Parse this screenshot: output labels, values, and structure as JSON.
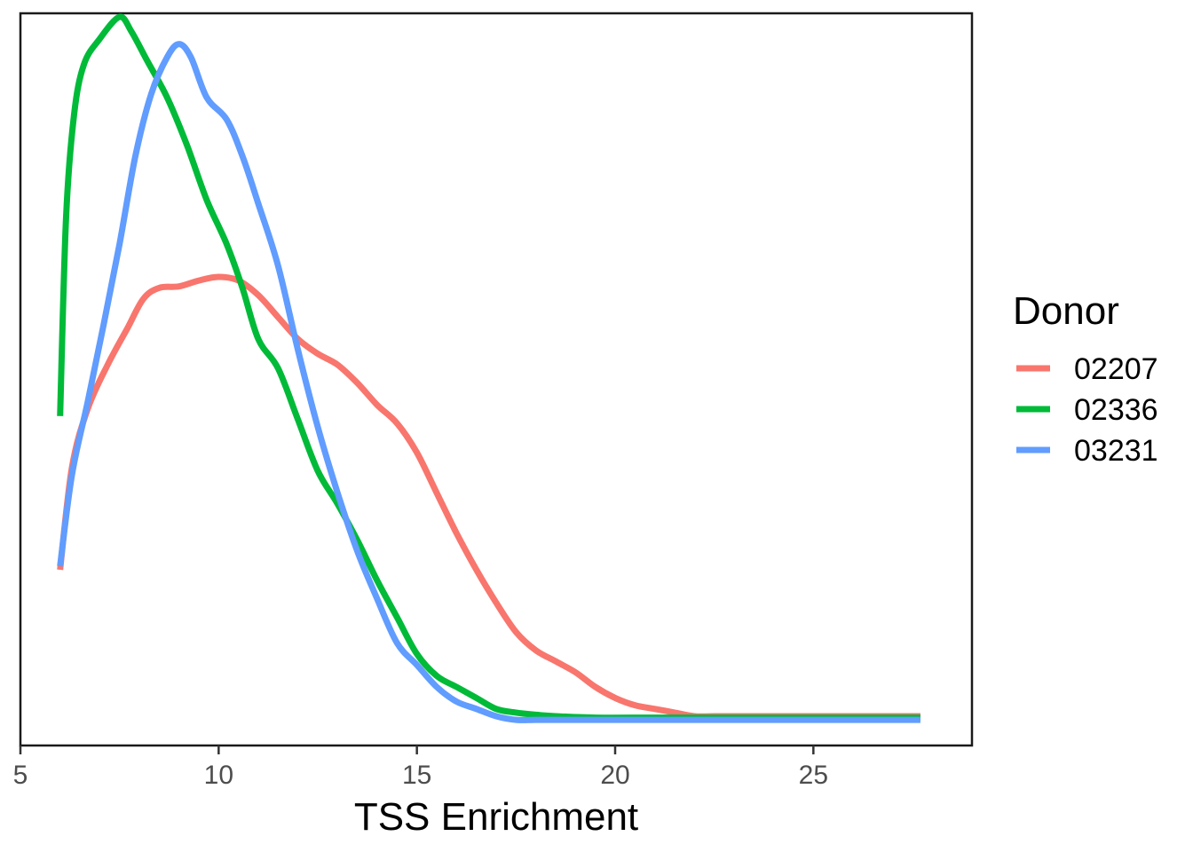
{
  "chart_data": {
    "type": "line",
    "title": "",
    "xlabel": "TSS Enrichment",
    "ylabel": "",
    "xlim": [
      5,
      29
    ],
    "ylim": [
      0,
      1
    ],
    "x_ticks": [
      5,
      10,
      15,
      20,
      25
    ],
    "x_tick_labels": [
      "5",
      "10",
      "15",
      "20",
      "25"
    ],
    "grid": false,
    "legend": {
      "title": "Donor",
      "position": "right"
    },
    "series": [
      {
        "name": "02207",
        "color": "#F8766D",
        "points": [
          [
            6.0,
            0.24
          ],
          [
            6.3,
            0.38
          ],
          [
            6.7,
            0.46
          ],
          [
            7.2,
            0.52
          ],
          [
            7.7,
            0.57
          ],
          [
            8.1,
            0.61
          ],
          [
            8.5,
            0.625
          ],
          [
            9.0,
            0.627
          ],
          [
            9.5,
            0.635
          ],
          [
            10.0,
            0.64
          ],
          [
            10.5,
            0.635
          ],
          [
            11.0,
            0.615
          ],
          [
            11.5,
            0.585
          ],
          [
            12.0,
            0.555
          ],
          [
            12.5,
            0.535
          ],
          [
            13.0,
            0.52
          ],
          [
            13.5,
            0.495
          ],
          [
            14.0,
            0.465
          ],
          [
            14.5,
            0.44
          ],
          [
            15.0,
            0.4
          ],
          [
            15.5,
            0.345
          ],
          [
            16.0,
            0.29
          ],
          [
            16.5,
            0.24
          ],
          [
            17.0,
            0.195
          ],
          [
            17.5,
            0.155
          ],
          [
            18.0,
            0.13
          ],
          [
            18.5,
            0.115
          ],
          [
            19.0,
            0.1
          ],
          [
            19.5,
            0.08
          ],
          [
            20.0,
            0.065
          ],
          [
            20.5,
            0.055
          ],
          [
            21.0,
            0.05
          ],
          [
            21.5,
            0.045
          ],
          [
            22.0,
            0.04
          ],
          [
            22.5,
            0.04
          ],
          [
            23.5,
            0.04
          ],
          [
            24.5,
            0.04
          ],
          [
            26.0,
            0.04
          ],
          [
            27.7,
            0.04
          ]
        ]
      },
      {
        "name": "02336",
        "color": "#00BA38",
        "points": [
          [
            6.0,
            0.45
          ],
          [
            6.15,
            0.72
          ],
          [
            6.35,
            0.86
          ],
          [
            6.6,
            0.93
          ],
          [
            7.0,
            0.965
          ],
          [
            7.5,
            0.995
          ],
          [
            7.8,
            0.975
          ],
          [
            8.2,
            0.935
          ],
          [
            8.7,
            0.885
          ],
          [
            9.2,
            0.82
          ],
          [
            9.7,
            0.745
          ],
          [
            10.2,
            0.685
          ],
          [
            10.6,
            0.625
          ],
          [
            11.0,
            0.555
          ],
          [
            11.5,
            0.515
          ],
          [
            12.0,
            0.445
          ],
          [
            12.5,
            0.375
          ],
          [
            13.0,
            0.33
          ],
          [
            13.5,
            0.28
          ],
          [
            14.0,
            0.225
          ],
          [
            14.5,
            0.175
          ],
          [
            15.0,
            0.125
          ],
          [
            15.5,
            0.095
          ],
          [
            16.0,
            0.08
          ],
          [
            16.5,
            0.065
          ],
          [
            17.0,
            0.05
          ],
          [
            17.5,
            0.045
          ],
          [
            18.0,
            0.042
          ],
          [
            18.5,
            0.04
          ],
          [
            19.5,
            0.038
          ],
          [
            21.0,
            0.038
          ],
          [
            23.0,
            0.038
          ],
          [
            25.0,
            0.038
          ],
          [
            27.7,
            0.038
          ]
        ]
      },
      {
        "name": "03231",
        "color": "#619CFF",
        "points": [
          [
            6.0,
            0.245
          ],
          [
            6.3,
            0.37
          ],
          [
            6.7,
            0.47
          ],
          [
            7.1,
            0.575
          ],
          [
            7.5,
            0.685
          ],
          [
            7.9,
            0.805
          ],
          [
            8.3,
            0.89
          ],
          [
            8.7,
            0.94
          ],
          [
            9.0,
            0.958
          ],
          [
            9.3,
            0.94
          ],
          [
            9.7,
            0.885
          ],
          [
            10.2,
            0.855
          ],
          [
            10.6,
            0.805
          ],
          [
            11.0,
            0.74
          ],
          [
            11.5,
            0.655
          ],
          [
            12.0,
            0.54
          ],
          [
            12.5,
            0.435
          ],
          [
            13.0,
            0.345
          ],
          [
            13.5,
            0.265
          ],
          [
            14.0,
            0.2
          ],
          [
            14.5,
            0.14
          ],
          [
            15.0,
            0.11
          ],
          [
            15.5,
            0.08
          ],
          [
            16.0,
            0.06
          ],
          [
            16.5,
            0.05
          ],
          [
            17.0,
            0.04
          ],
          [
            17.5,
            0.035
          ],
          [
            18.0,
            0.035
          ],
          [
            18.5,
            0.035
          ],
          [
            19.0,
            0.035
          ],
          [
            20.0,
            0.035
          ],
          [
            21.0,
            0.035
          ],
          [
            23.0,
            0.035
          ],
          [
            25.0,
            0.035
          ],
          [
            27.7,
            0.035
          ]
        ]
      }
    ]
  }
}
